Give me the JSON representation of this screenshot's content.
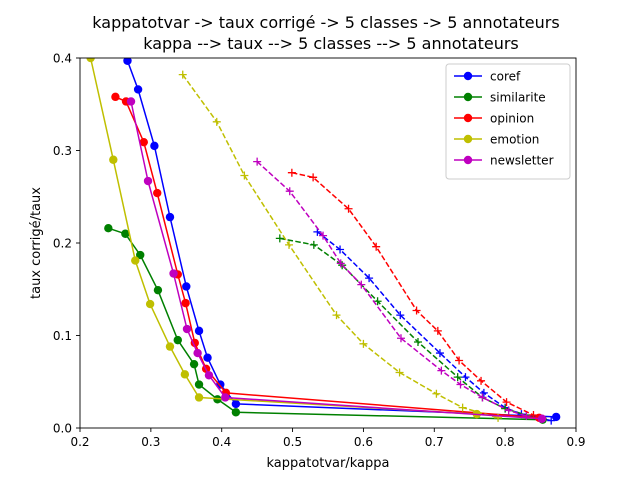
{
  "chart_data": {
    "type": "line",
    "title_line1": "kappatotvar -> taux corrigé -> 5 classes -> 5 annotateurs",
    "title_line2": "kappa --> taux --> 5 classes --> 5 annotateurs",
    "xlabel": "kappatotvar/kappa",
    "ylabel": "taux corrigé/taux",
    "xlim": [
      0.2,
      0.9
    ],
    "ylim": [
      0.0,
      0.4
    ],
    "xticks": [
      "0.2",
      "0.3",
      "0.4",
      "0.5",
      "0.6",
      "0.7",
      "0.8",
      "0.9"
    ],
    "yticks": [
      "0.0",
      "0.1",
      "0.2",
      "0.3",
      "0.4"
    ],
    "legend_position": "top-right",
    "grid": false,
    "series": [
      {
        "name": "coref",
        "color": "#0000ff",
        "solid": [
          [
            0.267,
            0.397
          ],
          [
            0.282,
            0.366
          ],
          [
            0.305,
            0.305
          ],
          [
            0.327,
            0.228
          ],
          [
            0.35,
            0.153
          ],
          [
            0.368,
            0.105
          ],
          [
            0.38,
            0.076
          ],
          [
            0.398,
            0.047
          ],
          [
            0.42,
            0.026
          ],
          [
            0.872,
            0.012
          ]
        ],
        "dashed": [
          [
            0.535,
            0.212
          ],
          [
            0.567,
            0.193
          ],
          [
            0.608,
            0.162
          ],
          [
            0.652,
            0.122
          ],
          [
            0.708,
            0.081
          ],
          [
            0.744,
            0.055
          ],
          [
            0.77,
            0.038
          ],
          [
            0.8,
            0.022
          ],
          [
            0.823,
            0.015
          ],
          [
            0.865,
            0.008
          ]
        ]
      },
      {
        "name": "similarite",
        "color": "#008000",
        "solid": [
          [
            0.24,
            0.216
          ],
          [
            0.264,
            0.21
          ],
          [
            0.285,
            0.187
          ],
          [
            0.31,
            0.149
          ],
          [
            0.338,
            0.095
          ],
          [
            0.361,
            0.069
          ],
          [
            0.368,
            0.047
          ],
          [
            0.394,
            0.031
          ],
          [
            0.42,
            0.017
          ],
          [
            0.853,
            0.009
          ]
        ],
        "dashed": [
          [
            0.482,
            0.205
          ],
          [
            0.53,
            0.198
          ],
          [
            0.57,
            0.176
          ],
          [
            0.62,
            0.137
          ],
          [
            0.677,
            0.093
          ],
          [
            0.733,
            0.055
          ],
          [
            0.768,
            0.033
          ],
          [
            0.8,
            0.021
          ],
          [
            0.83,
            0.014
          ],
          [
            0.85,
            0.01
          ]
        ]
      },
      {
        "name": "opinion",
        "color": "#ff0000",
        "solid": [
          [
            0.25,
            0.358
          ],
          [
            0.265,
            0.353
          ],
          [
            0.29,
            0.309
          ],
          [
            0.309,
            0.254
          ],
          [
            0.338,
            0.166
          ],
          [
            0.349,
            0.135
          ],
          [
            0.362,
            0.092
          ],
          [
            0.378,
            0.064
          ],
          [
            0.406,
            0.038
          ],
          [
            0.848,
            0.011
          ]
        ],
        "dashed": [
          [
            0.499,
            0.276
          ],
          [
            0.529,
            0.271
          ],
          [
            0.579,
            0.237
          ],
          [
            0.618,
            0.196
          ],
          [
            0.675,
            0.127
          ],
          [
            0.705,
            0.105
          ],
          [
            0.735,
            0.073
          ],
          [
            0.766,
            0.051
          ],
          [
            0.802,
            0.028
          ],
          [
            0.84,
            0.014
          ]
        ]
      },
      {
        "name": "emotion",
        "color": "#bfbf00",
        "solid": [
          [
            0.215,
            0.4
          ],
          [
            0.247,
            0.29
          ],
          [
            0.278,
            0.181
          ],
          [
            0.299,
            0.134
          ],
          [
            0.327,
            0.088
          ],
          [
            0.348,
            0.058
          ],
          [
            0.368,
            0.033
          ],
          [
            0.76,
            0.015
          ]
        ],
        "dashed": [
          [
            0.345,
            0.382
          ],
          [
            0.393,
            0.331
          ],
          [
            0.432,
            0.273
          ],
          [
            0.495,
            0.198
          ],
          [
            0.562,
            0.122
          ],
          [
            0.6,
            0.091
          ],
          [
            0.651,
            0.06
          ],
          [
            0.703,
            0.037
          ],
          [
            0.74,
            0.022
          ],
          [
            0.79,
            0.011
          ]
        ]
      },
      {
        "name": "newsletter",
        "color": "#bf00bf",
        "solid": [
          [
            0.272,
            0.353
          ],
          [
            0.296,
            0.267
          ],
          [
            0.332,
            0.167
          ],
          [
            0.351,
            0.107
          ],
          [
            0.366,
            0.081
          ],
          [
            0.382,
            0.057
          ],
          [
            0.405,
            0.033
          ],
          [
            0.852,
            0.01
          ]
        ],
        "dashed": [
          [
            0.45,
            0.288
          ],
          [
            0.496,
            0.256
          ],
          [
            0.543,
            0.208
          ],
          [
            0.568,
            0.178
          ],
          [
            0.597,
            0.155
          ],
          [
            0.653,
            0.097
          ],
          [
            0.71,
            0.062
          ],
          [
            0.737,
            0.047
          ],
          [
            0.768,
            0.033
          ],
          [
            0.805,
            0.019
          ],
          [
            0.83,
            0.013
          ]
        ]
      }
    ]
  }
}
